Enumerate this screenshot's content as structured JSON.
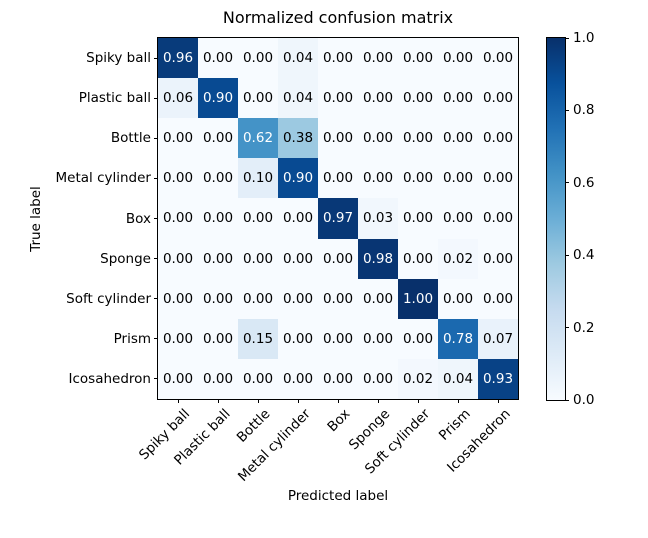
{
  "chart_data": {
    "type": "heatmap",
    "title": "Normalized confusion matrix",
    "xlabel": "Predicted label",
    "ylabel": "True label",
    "categories": [
      "Spiky ball",
      "Plastic ball",
      "Bottle",
      "Metal cylinder",
      "Box",
      "Sponge",
      "Soft cylinder",
      "Prism",
      "Icosahedron"
    ],
    "matrix": [
      [
        0.96,
        0.0,
        0.0,
        0.04,
        0.0,
        0.0,
        0.0,
        0.0,
        0.0
      ],
      [
        0.06,
        0.9,
        0.0,
        0.04,
        0.0,
        0.0,
        0.0,
        0.0,
        0.0
      ],
      [
        0.0,
        0.0,
        0.62,
        0.38,
        0.0,
        0.0,
        0.0,
        0.0,
        0.0
      ],
      [
        0.0,
        0.0,
        0.1,
        0.9,
        0.0,
        0.0,
        0.0,
        0.0,
        0.0
      ],
      [
        0.0,
        0.0,
        0.0,
        0.0,
        0.97,
        0.03,
        0.0,
        0.0,
        0.0
      ],
      [
        0.0,
        0.0,
        0.0,
        0.0,
        0.0,
        0.98,
        0.0,
        0.02,
        0.0
      ],
      [
        0.0,
        0.0,
        0.0,
        0.0,
        0.0,
        0.0,
        1.0,
        0.0,
        0.0
      ],
      [
        0.0,
        0.0,
        0.15,
        0.0,
        0.0,
        0.0,
        0.0,
        0.78,
        0.07
      ],
      [
        0.0,
        0.0,
        0.0,
        0.0,
        0.0,
        0.0,
        0.02,
        0.04,
        0.93
      ]
    ],
    "vmin": 0.0,
    "vmax": 1.0,
    "value_decimals": 2,
    "grid": false,
    "colormap_name": "Blues",
    "colormap_anchors": [
      "#f7fbff",
      "#deebf7",
      "#c6dbef",
      "#9ecae1",
      "#6baed6",
      "#4292c6",
      "#2171b5",
      "#08519c",
      "#08306b"
    ],
    "cell_text_threshold": 0.5,
    "cell_text_color_high": "#ffffff",
    "cell_text_color_low": "#000000",
    "axis_color": "#000000",
    "colorbar": {
      "position": "right",
      "tick_labels": [
        "0.0",
        "0.2",
        "0.4",
        "0.6",
        "0.8",
        "1.0"
      ],
      "tick_values": [
        0.0,
        0.2,
        0.4,
        0.6,
        0.8,
        1.0
      ]
    }
  }
}
